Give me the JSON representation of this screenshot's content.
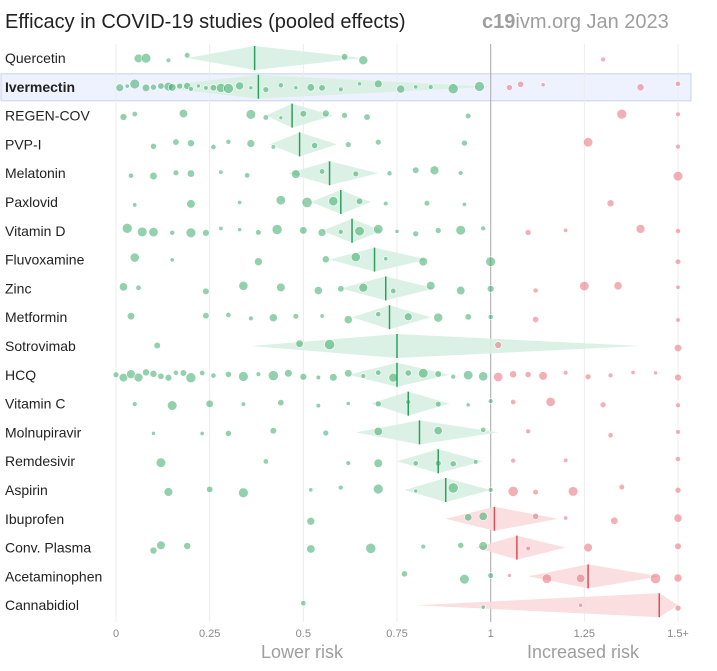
{
  "title": "Efficacy in COVID-19 studies (pooled effects)",
  "credit_bold": "c19",
  "credit_rest": "ivm.org Jan 2023",
  "lower_label": "Lower risk",
  "higher_label": "Increased risk",
  "colors": {
    "benefit": "#3aaa6a",
    "harm": "#e8707a",
    "benefit_fill": "#d8efe2",
    "harm_fill": "#fadadd",
    "highlight_bg": "#eef2ff",
    "highlight_border": "#c8d0f0"
  },
  "chart_data": {
    "type": "scatter",
    "xlim": [
      0,
      1.5
    ],
    "x_ticks": [
      {
        "value": 0,
        "label": "0"
      },
      {
        "value": 0.25,
        "label": "0.25"
      },
      {
        "value": 0.5,
        "label": "0.5"
      },
      {
        "value": 0.75,
        "label": "0.75"
      },
      {
        "value": 1,
        "label": "1"
      },
      {
        "value": 1.25,
        "label": "1.25"
      },
      {
        "value": 1.5,
        "label": "1.5+"
      }
    ],
    "reference_line": 1,
    "highlight": "Ivermectin",
    "treatments": [
      {
        "name": "Quercetin",
        "pooled": 0.37,
        "ci": [
          0.19,
          0.66
        ],
        "studies": [
          0.06,
          0.08,
          0.14,
          0.19,
          0.61,
          0.66,
          1.3
        ]
      },
      {
        "name": "Ivermectin",
        "pooled": 0.38,
        "ci": [
          0.1,
          1.0
        ],
        "studies": [
          0.01,
          0.03,
          0.05,
          0.08,
          0.1,
          0.12,
          0.14,
          0.15,
          0.17,
          0.19,
          0.2,
          0.22,
          0.24,
          0.26,
          0.28,
          0.3,
          0.33,
          0.36,
          0.4,
          0.44,
          0.48,
          0.52,
          0.55,
          0.6,
          0.65,
          0.7,
          0.76,
          0.8,
          0.84,
          0.9,
          0.97,
          1.05,
          1.08,
          1.14,
          1.4,
          1.5
        ]
      },
      {
        "name": "REGEN-COV",
        "pooled": 0.47,
        "ci": [
          0.4,
          0.58
        ],
        "studies": [
          0.02,
          0.05,
          0.18,
          0.36,
          0.4,
          0.44,
          0.5,
          0.56,
          0.61,
          0.67,
          0.94,
          1.35,
          1.5
        ]
      },
      {
        "name": "PVP-I",
        "pooled": 0.49,
        "ci": [
          0.41,
          0.59
        ],
        "studies": [
          0.1,
          0.16,
          0.2,
          0.26,
          0.3,
          0.36,
          0.42,
          0.53,
          0.62,
          0.7,
          0.93,
          1.26,
          1.5
        ]
      },
      {
        "name": "Melatonin",
        "pooled": 0.57,
        "ci": [
          0.46,
          0.7
        ],
        "studies": [
          0.04,
          0.1,
          0.16,
          0.2,
          0.28,
          0.35,
          0.48,
          0.55,
          0.64,
          0.73,
          0.8,
          0.85,
          0.92,
          1.5
        ]
      },
      {
        "name": "Paxlovid",
        "pooled": 0.6,
        "ci": [
          0.52,
          0.68
        ],
        "studies": [
          0.05,
          0.2,
          0.33,
          0.44,
          0.51,
          0.58,
          0.65,
          0.72,
          0.83,
          0.93,
          1.32
        ]
      },
      {
        "name": "Vitamin D",
        "pooled": 0.63,
        "ci": [
          0.55,
          0.71
        ],
        "studies": [
          0.03,
          0.07,
          0.1,
          0.15,
          0.2,
          0.24,
          0.28,
          0.33,
          0.38,
          0.43,
          0.5,
          0.55,
          0.6,
          0.65,
          0.7,
          0.75,
          0.8,
          0.86,
          0.92,
          0.98,
          1.1,
          1.2,
          1.4,
          1.5
        ]
      },
      {
        "name": "Fluvoxamine",
        "pooled": 0.69,
        "ci": [
          0.57,
          0.83
        ],
        "studies": [
          0.05,
          0.15,
          0.38,
          0.56,
          0.64,
          0.72,
          0.82,
          1.0,
          1.5
        ]
      },
      {
        "name": "Zinc",
        "pooled": 0.72,
        "ci": [
          0.6,
          0.85
        ],
        "studies": [
          0.02,
          0.06,
          0.24,
          0.34,
          0.44,
          0.54,
          0.6,
          0.66,
          0.74,
          0.84,
          0.92,
          1.0,
          1.12,
          1.25,
          1.34,
          1.5
        ]
      },
      {
        "name": "Metformin",
        "pooled": 0.73,
        "ci": [
          0.63,
          0.84
        ],
        "studies": [
          0.04,
          0.24,
          0.3,
          0.36,
          0.42,
          0.48,
          0.55,
          0.62,
          0.7,
          0.78,
          0.86,
          0.94,
          1.0,
          1.12,
          1.5
        ]
      },
      {
        "name": "Sotrovimab",
        "pooled": 0.75,
        "ci": [
          0.36,
          1.4
        ],
        "studies": [
          0.11,
          0.49,
          0.57,
          1.02,
          1.5
        ]
      },
      {
        "name": "HCQ",
        "pooled": 0.75,
        "ci": [
          0.62,
          0.89
        ],
        "studies": [
          0.0,
          0.02,
          0.04,
          0.06,
          0.08,
          0.1,
          0.12,
          0.14,
          0.16,
          0.18,
          0.2,
          0.23,
          0.26,
          0.3,
          0.34,
          0.38,
          0.42,
          0.46,
          0.5,
          0.54,
          0.58,
          0.62,
          0.66,
          0.7,
          0.74,
          0.78,
          0.82,
          0.86,
          0.9,
          0.94,
          0.98,
          1.02,
          1.06,
          1.1,
          1.14,
          1.2,
          1.26,
          1.32,
          1.38,
          1.44,
          1.5
        ]
      },
      {
        "name": "Vitamin C",
        "pooled": 0.78,
        "ci": [
          0.68,
          0.89
        ],
        "studies": [
          0.05,
          0.15,
          0.25,
          0.34,
          0.44,
          0.54,
          0.62,
          0.7,
          0.78,
          0.86,
          0.94,
          1.0,
          1.06,
          1.16,
          1.3,
          1.5
        ]
      },
      {
        "name": "Molnupiravir",
        "pooled": 0.81,
        "ci": [
          0.64,
          1.02
        ],
        "studies": [
          0.1,
          0.23,
          0.3,
          0.42,
          0.56,
          0.7,
          0.86,
          0.98,
          1.1,
          1.32,
          1.5
        ]
      },
      {
        "name": "Remdesivir",
        "pooled": 0.86,
        "ci": [
          0.75,
          0.98
        ],
        "studies": [
          0.12,
          0.4,
          0.62,
          0.7,
          0.8,
          0.86,
          0.9,
          0.96,
          1.06,
          1.2,
          1.5
        ]
      },
      {
        "name": "Aspirin",
        "pooled": 0.88,
        "ci": [
          0.77,
          1.0
        ],
        "studies": [
          0.14,
          0.25,
          0.34,
          0.52,
          0.6,
          0.7,
          0.8,
          0.9,
          1.0,
          1.06,
          1.12,
          1.22,
          1.35,
          1.5
        ]
      },
      {
        "name": "Ibuprofen",
        "pooled": 1.01,
        "ci": [
          0.88,
          1.18
        ],
        "studies": [
          0.52,
          0.94,
          0.98,
          1.12,
          1.2,
          1.33,
          1.5
        ]
      },
      {
        "name": "Conv. Plasma",
        "pooled": 1.07,
        "ci": [
          0.96,
          1.2
        ],
        "studies": [
          0.1,
          0.12,
          0.19,
          0.52,
          0.68,
          0.82,
          0.92,
          0.98,
          1.1,
          1.26,
          1.5
        ]
      },
      {
        "name": "Acetaminophen",
        "pooled": 1.26,
        "ci": [
          1.1,
          1.45
        ],
        "studies": [
          0.77,
          0.93,
          1.0,
          1.05,
          1.15,
          1.24,
          1.44,
          1.5
        ]
      },
      {
        "name": "Cannabidiol",
        "pooled": 1.45,
        "ci": [
          0.8,
          1.5
        ],
        "studies": [
          0.5,
          0.98,
          1.24,
          1.5
        ]
      }
    ]
  }
}
